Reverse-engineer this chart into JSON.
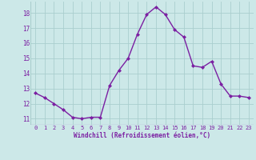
{
  "x": [
    0,
    1,
    2,
    3,
    4,
    5,
    6,
    7,
    8,
    9,
    10,
    11,
    12,
    13,
    14,
    15,
    16,
    17,
    18,
    19,
    20,
    21,
    22,
    23
  ],
  "y": [
    12.7,
    12.4,
    12.0,
    11.6,
    11.1,
    11.0,
    11.1,
    11.1,
    13.2,
    14.2,
    15.0,
    16.6,
    17.9,
    18.4,
    17.9,
    16.9,
    16.4,
    14.5,
    14.4,
    14.8,
    13.3,
    12.5,
    12.5,
    12.4
  ],
  "xlabel": "Windchill (Refroidissement éolien,°C)",
  "xlim": [
    -0.5,
    23.5
  ],
  "ylim": [
    10.6,
    18.75
  ],
  "yticks": [
    11,
    12,
    13,
    14,
    15,
    16,
    17,
    18
  ],
  "xticks": [
    0,
    1,
    2,
    3,
    4,
    5,
    6,
    7,
    8,
    9,
    10,
    11,
    12,
    13,
    14,
    15,
    16,
    17,
    18,
    19,
    20,
    21,
    22,
    23
  ],
  "line_color": "#7b1fa2",
  "marker": "D",
  "marker_size": 2.0,
  "bg_color": "#cce8e8",
  "grid_color": "#aacece",
  "tick_label_color": "#7b1fa2",
  "xlabel_color": "#7b1fa2",
  "line_width": 1.0
}
